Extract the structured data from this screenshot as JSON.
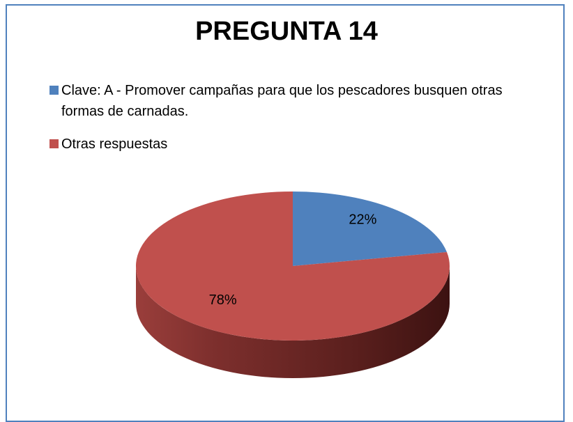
{
  "chart_data": {
    "type": "pie",
    "title": "PREGUNTA 14",
    "categories": [
      "Clave: A - Promover campañas para que los pescadores busquen otras formas de carnadas.",
      "Otras respuestas"
    ],
    "values": [
      22,
      78
    ],
    "value_labels": [
      "22%",
      "78%"
    ],
    "colors": [
      "#4f81bd",
      "#c0504d"
    ],
    "legend": "top"
  }
}
